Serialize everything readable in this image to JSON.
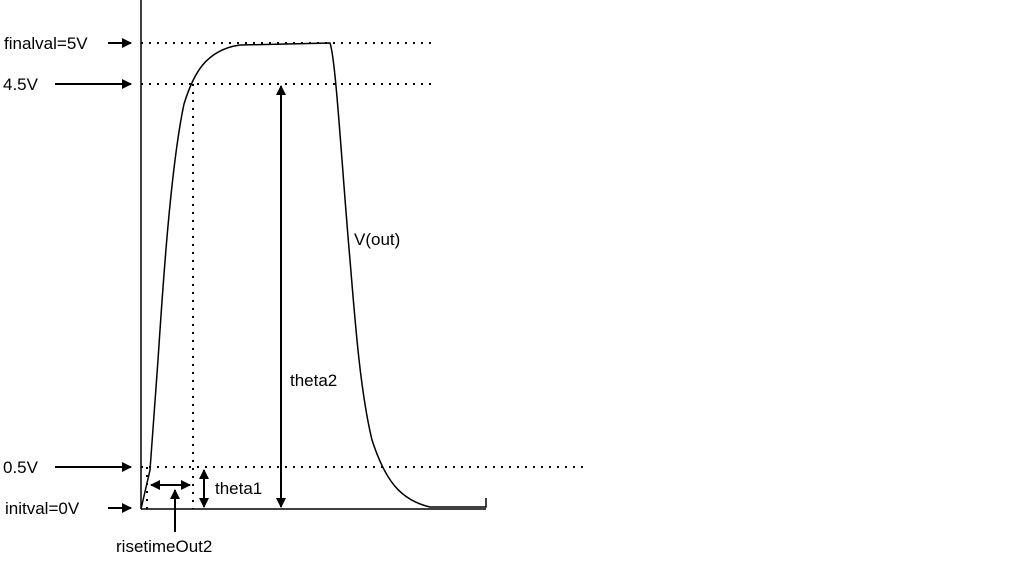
{
  "labels": {
    "finalval": "finalval=5V",
    "v45": "4.5V",
    "v05": "0.5V",
    "initval": "initval=0V",
    "vout": "V(out)",
    "theta2": "theta2",
    "theta1": "theta1",
    "risetime": "risetimeOut2"
  }
}
